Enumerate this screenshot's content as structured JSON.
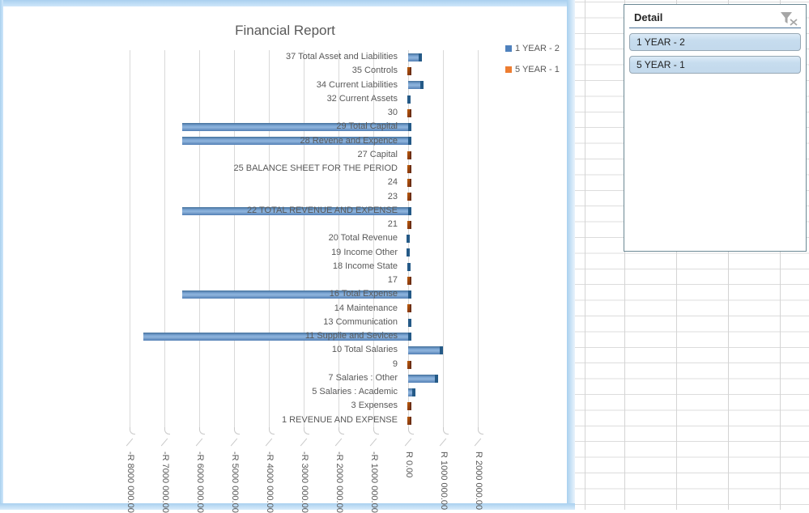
{
  "chart": {
    "title": "Financial Report",
    "legend": [
      {
        "label": "1 YEAR - 2",
        "color": "#4f81bd"
      },
      {
        "label": "5 YEAR - 1",
        "color": "#ed7d31"
      }
    ],
    "colors": {
      "bar_blue": "#4f81bd",
      "bar_blue_cap": "#255a87",
      "bar_orange": "#9c4a22",
      "text_gray": "#595959",
      "gridline": "#d9d9d9",
      "selection_frame": "#a9d0ef"
    },
    "chart_data": {
      "type": "bar",
      "orientation": "horizontal",
      "title": "Financial Report",
      "categories": [
        "37 Total Asset and Liabilities",
        "35 Controls",
        "34 Current Liabilities",
        "32 Current Assets",
        "30",
        "29 Total Capital",
        "28 Revene and Expence",
        "27 Capital",
        "25 BALANCE SHEET FOR THE PERIOD",
        "24",
        "23",
        "22 TOTAL REVENUE AND EXPENSE",
        "21",
        "20 Total Revenue",
        "19 Income Other",
        "18 Income State",
        "17",
        "16 Total Expense",
        "14 Maintenance",
        "13 Communication",
        "11 Supplie and Sevices",
        "10 Total Salaries",
        "9",
        "7 Salaries : Other",
        "5 Salaries : Academic",
        "3 Expenses",
        "1 REVENUE AND EXPENSE"
      ],
      "series": [
        {
          "name": "1 YEAR - 2",
          "values": [
            400000,
            0,
            450000,
            60000,
            0,
            -6500000,
            -6500000,
            0,
            0,
            0,
            0,
            -6500000,
            0,
            40000,
            40000,
            60000,
            0,
            -6500000,
            0,
            100000,
            -7600000,
            1000000,
            0,
            850000,
            200000,
            0,
            0
          ]
        },
        {
          "name": "5 YEAR - 1",
          "values": [
            0,
            20000,
            0,
            0,
            20000,
            0,
            0,
            20000,
            20000,
            20000,
            20000,
            0,
            20000,
            0,
            0,
            0,
            20000,
            0,
            20000,
            0,
            0,
            0,
            20000,
            0,
            0,
            20000,
            20000
          ]
        }
      ],
      "xlim": [
        -8000000,
        2000000
      ],
      "x_tick_labels": [
        "-R 8000 000.00",
        "-R 7000 000.00",
        "-R 6000 000.00",
        "-R 5000 000.00",
        "-R 4000 000.00",
        "-R 3000 000.00",
        "-R 2000 000.00",
        "-R 1000 000.00",
        "R 0.00",
        "R 1000 000.00",
        "R 2000 000.00"
      ],
      "grid": true,
      "legend_position": "top-right"
    }
  },
  "slicer": {
    "title": "Detail",
    "clear_filter_icon": "funnel-x-icon",
    "buttons": [
      "1 YEAR - 2",
      "5 YEAR - 1"
    ]
  }
}
